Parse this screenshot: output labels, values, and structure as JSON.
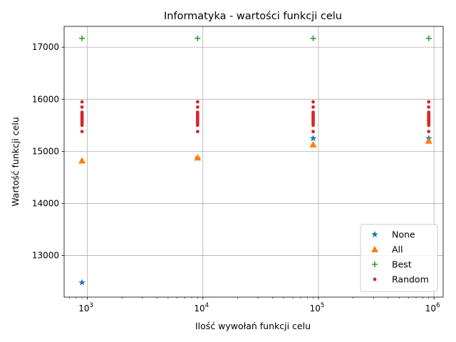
{
  "chart_data": {
    "type": "scatter",
    "title": "Informatyka - wartości funkcji celu",
    "xlabel": "Ilość wywołań funkcji celu",
    "ylabel": "Wartość funkcji celu",
    "xscale": "log",
    "xlim": [
      630,
      1200000
    ],
    "ylim": [
      12200,
      17400
    ],
    "x_ticks": [
      1000,
      10000,
      100000,
      1000000
    ],
    "x_tick_labels": [
      {
        "base": "10",
        "exp": "3"
      },
      {
        "base": "10",
        "exp": "4"
      },
      {
        "base": "10",
        "exp": "5"
      },
      {
        "base": "10",
        "exp": "6"
      }
    ],
    "y_ticks": [
      13000,
      14000,
      15000,
      16000,
      17000
    ],
    "y_tick_labels": [
      "13000",
      "14000",
      "15000",
      "16000",
      "17000"
    ],
    "grid": true,
    "legend_position": "lower right",
    "series": [
      {
        "name": "None",
        "marker": "star",
        "color": "#1f77b4",
        "points": [
          [
            900,
            12480
          ],
          [
            9000,
            14870
          ],
          [
            90000,
            15250
          ],
          [
            900000,
            15250
          ]
        ]
      },
      {
        "name": "All",
        "marker": "triangle",
        "color": "#ff7f0e",
        "points": [
          [
            900,
            14820
          ],
          [
            9000,
            14880
          ],
          [
            90000,
            15130
          ],
          [
            900000,
            15200
          ]
        ]
      },
      {
        "name": "Best",
        "marker": "plus",
        "color": "#2ca02c",
        "points": [
          [
            900,
            17170
          ],
          [
            9000,
            17170
          ],
          [
            90000,
            17170
          ],
          [
            900000,
            17170
          ]
        ]
      },
      {
        "name": "Random",
        "marker": "dot",
        "color": "#d62728",
        "points": [
          [
            900,
            15950
          ],
          [
            900,
            15850
          ],
          [
            900,
            15750
          ],
          [
            900,
            15720
          ],
          [
            900,
            15690
          ],
          [
            900,
            15660
          ],
          [
            900,
            15630
          ],
          [
            900,
            15600
          ],
          [
            900,
            15570
          ],
          [
            900,
            15540
          ],
          [
            900,
            15500
          ],
          [
            900,
            15380
          ],
          [
            9000,
            15950
          ],
          [
            9000,
            15850
          ],
          [
            9000,
            15750
          ],
          [
            9000,
            15720
          ],
          [
            9000,
            15690
          ],
          [
            9000,
            15660
          ],
          [
            9000,
            15630
          ],
          [
            9000,
            15600
          ],
          [
            9000,
            15570
          ],
          [
            9000,
            15540
          ],
          [
            9000,
            15500
          ],
          [
            9000,
            15380
          ],
          [
            90000,
            15950
          ],
          [
            90000,
            15850
          ],
          [
            90000,
            15750
          ],
          [
            90000,
            15720
          ],
          [
            90000,
            15690
          ],
          [
            90000,
            15660
          ],
          [
            90000,
            15630
          ],
          [
            90000,
            15600
          ],
          [
            90000,
            15570
          ],
          [
            90000,
            15540
          ],
          [
            90000,
            15500
          ],
          [
            90000,
            15380
          ],
          [
            900000,
            15950
          ],
          [
            900000,
            15850
          ],
          [
            900000,
            15750
          ],
          [
            900000,
            15720
          ],
          [
            900000,
            15690
          ],
          [
            900000,
            15660
          ],
          [
            900000,
            15630
          ],
          [
            900000,
            15600
          ],
          [
            900000,
            15570
          ],
          [
            900000,
            15540
          ],
          [
            900000,
            15500
          ],
          [
            900000,
            15380
          ]
        ]
      }
    ]
  }
}
